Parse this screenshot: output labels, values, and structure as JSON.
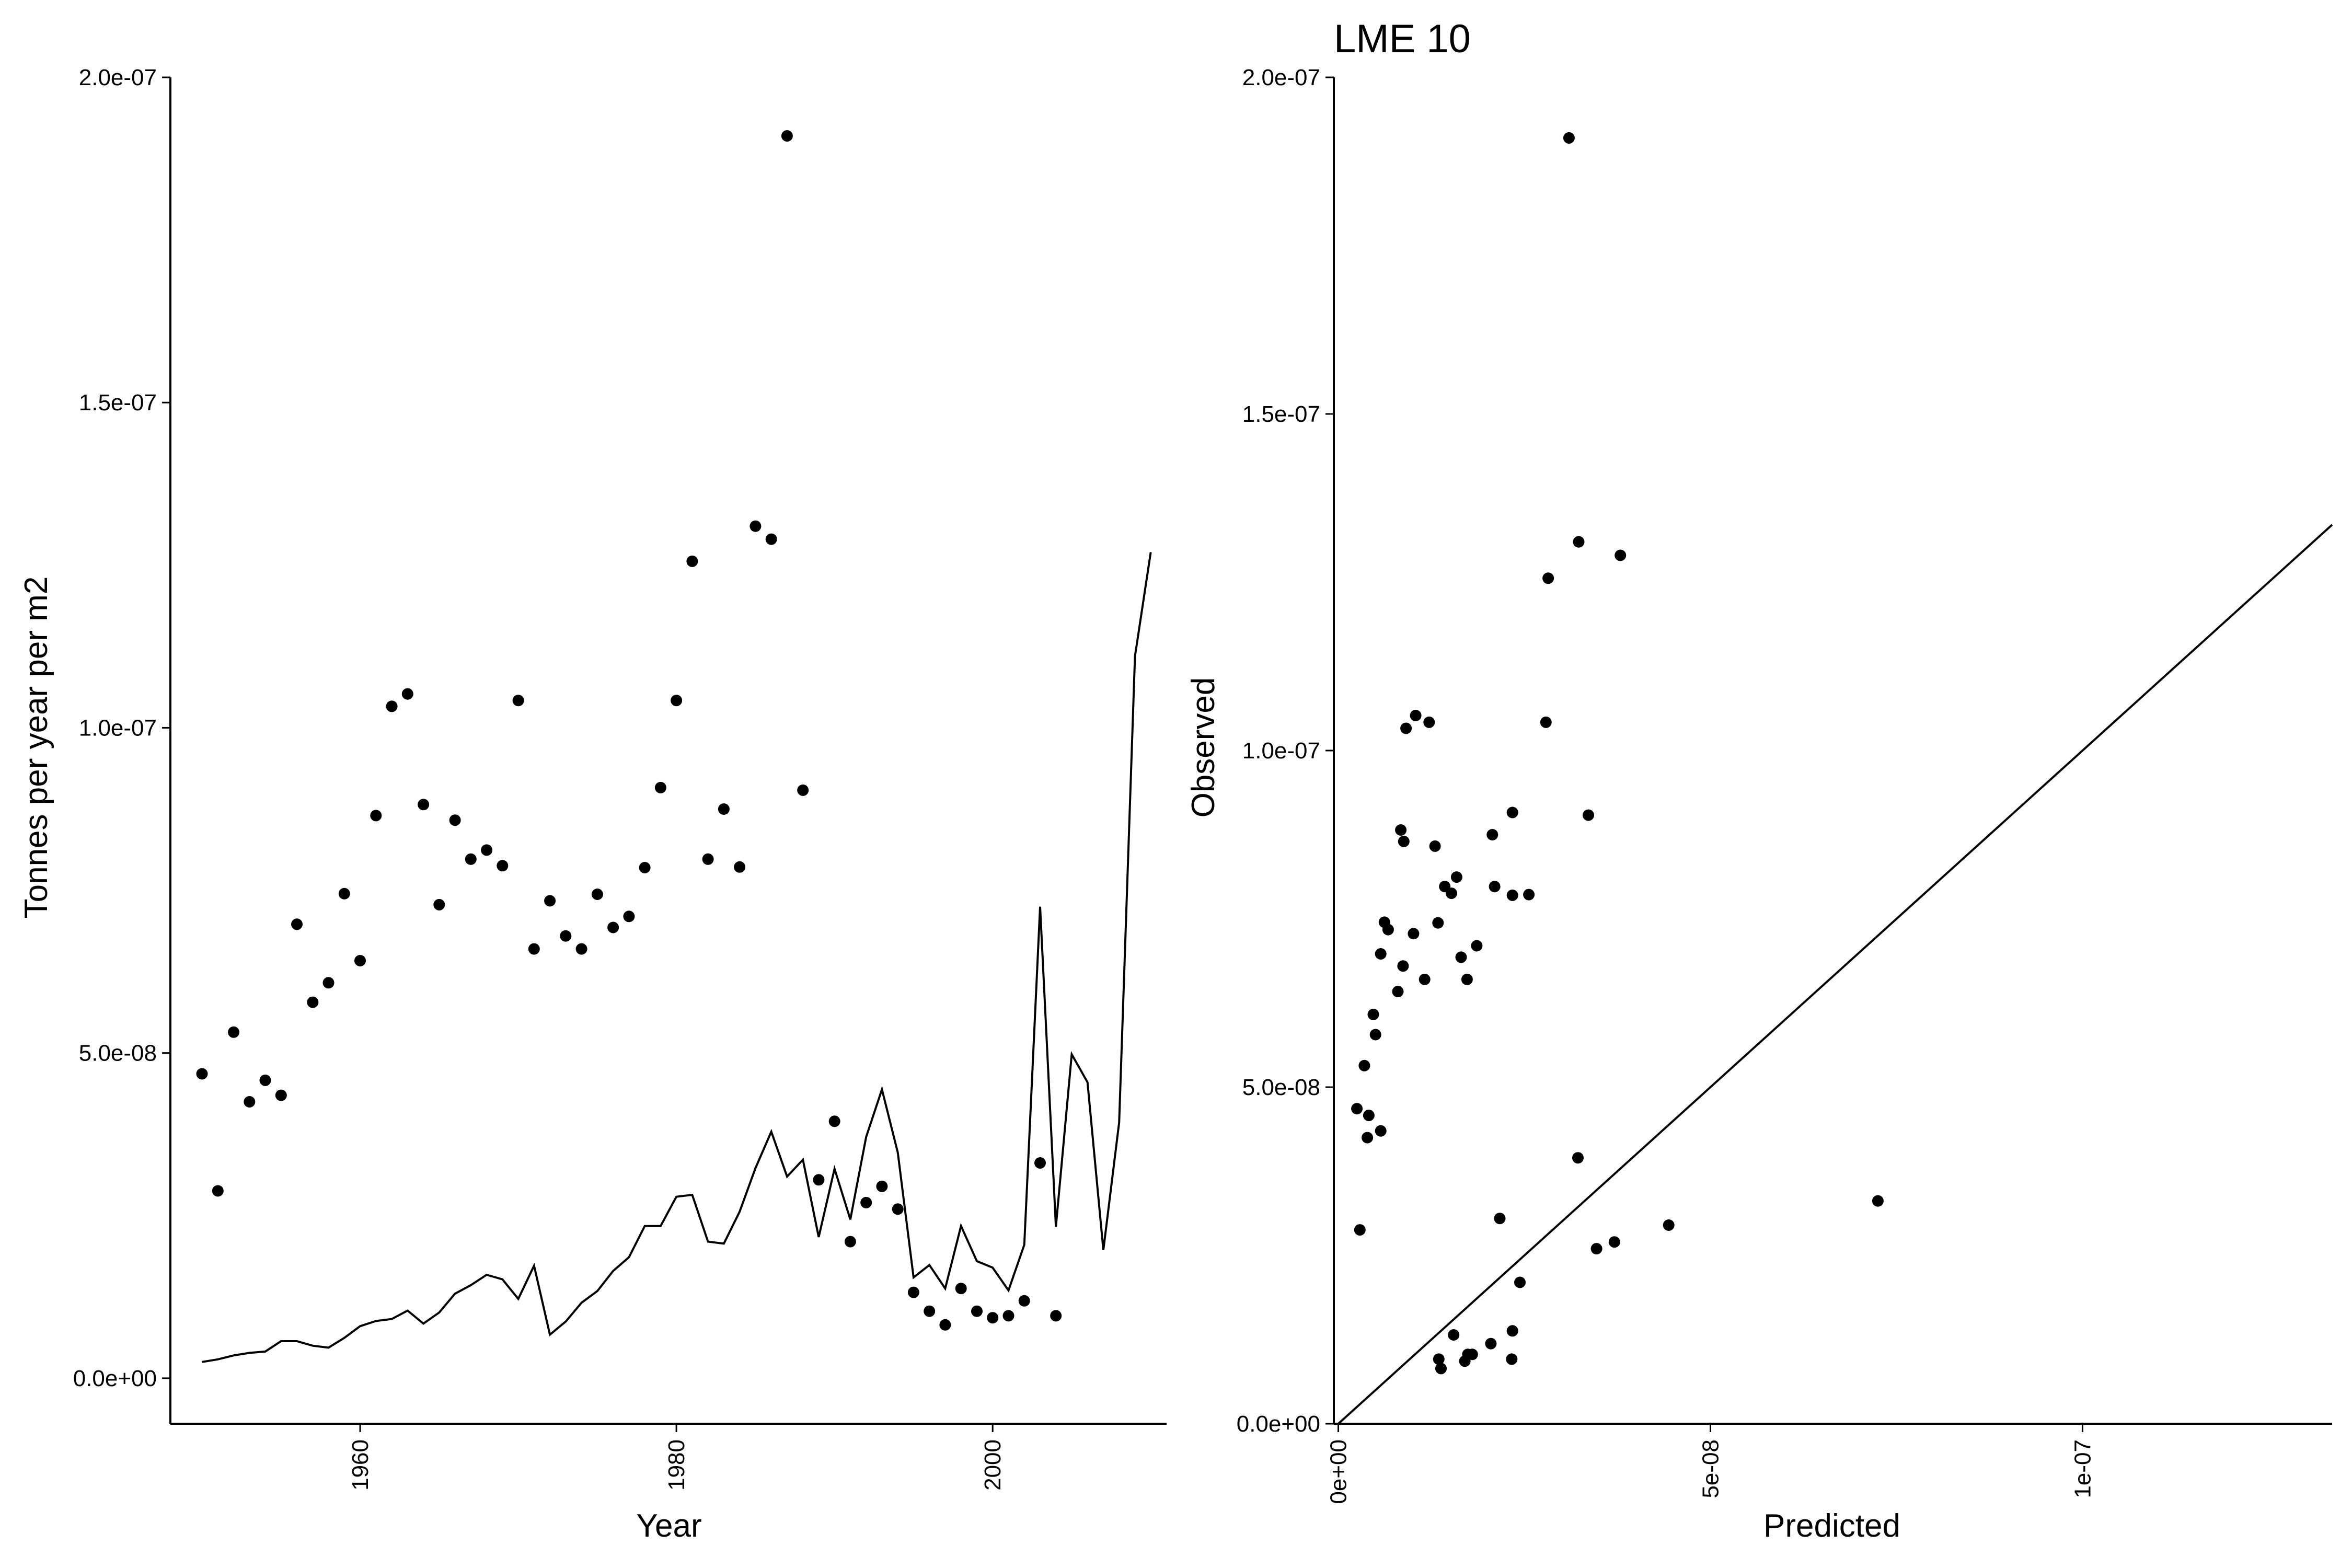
{
  "chart_data": [
    {
      "type": "line+scatter",
      "title": "",
      "xlabel": "Year",
      "ylabel": "Tonnes per year per m2",
      "xlim": [
        1948,
        2011
      ],
      "ylim": [
        -7e-09,
        2e-07
      ],
      "xticks": [
        {
          "v": 1960,
          "label": "1960"
        },
        {
          "v": 1980,
          "label": "1980"
        },
        {
          "v": 2000,
          "label": "2000"
        }
      ],
      "yticks": [
        {
          "v": 0,
          "label": "0.0e+00"
        },
        {
          "v": 5e-08,
          "label": "5.0e-08"
        },
        {
          "v": 1e-07,
          "label": "1.0e-07"
        },
        {
          "v": 1.5e-07,
          "label": "1.5e-07"
        },
        {
          "v": 2e-07,
          "label": "2.0e-07"
        }
      ],
      "grid": false,
      "points": {
        "x": [
          1950,
          1951,
          1952,
          1953,
          1954,
          1955,
          1956,
          1957,
          1958,
          1959,
          1960,
          1961,
          1962,
          1963,
          1964,
          1965,
          1966,
          1967,
          1968,
          1969,
          1970,
          1971,
          1972,
          1973,
          1974,
          1975,
          1976,
          1977,
          1978,
          1979,
          1980,
          1981,
          1982,
          1983,
          1984,
          1985,
          1986,
          1987,
          1988,
          1989,
          1990,
          1991,
          1992,
          1993,
          1994,
          1995,
          1996,
          1997,
          1998,
          1999,
          2000,
          2001,
          2002,
          2003,
          2004
        ],
        "y": [
          4.68e-08,
          2.88e-08,
          5.32e-08,
          4.25e-08,
          4.58e-08,
          4.35e-08,
          6.98e-08,
          5.78e-08,
          6.08e-08,
          7.45e-08,
          6.42e-08,
          8.65e-08,
          1.033e-07,
          1.052e-07,
          8.82e-08,
          7.28e-08,
          8.58e-08,
          7.98e-08,
          8.12e-08,
          7.88e-08,
          1.042e-07,
          6.6e-08,
          7.34e-08,
          6.8e-08,
          6.6e-08,
          7.44e-08,
          6.93e-08,
          7.1e-08,
          7.85e-08,
          9.08e-08,
          1.042e-07,
          1.256e-07,
          7.98e-08,
          8.75e-08,
          7.86e-08,
          1.31e-07,
          1.29e-07,
          1.91e-07,
          9.04e-08,
          3.05e-08,
          3.95e-08,
          2.1e-08,
          2.7e-08,
          2.95e-08,
          2.6e-08,
          1.32e-08,
          1.03e-08,
          8.2e-09,
          1.38e-08,
          1.03e-08,
          9.3e-09,
          9.6e-09,
          1.19e-08,
          3.31e-08,
          9.6e-09
        ]
      },
      "line": {
        "x": [
          1950,
          1951,
          1952,
          1953,
          1954,
          1955,
          1956,
          1957,
          1958,
          1959,
          1960,
          1961,
          1962,
          1963,
          1964,
          1965,
          1966,
          1967,
          1968,
          1969,
          1970,
          1971,
          1972,
          1973,
          1974,
          1975,
          1976,
          1977,
          1978,
          1979,
          1980,
          1981,
          1982,
          1983,
          1984,
          1985,
          1986,
          1987,
          1988,
          1989,
          1990,
          1991,
          1992,
          1993,
          1994,
          1995,
          1996,
          1997,
          1998,
          1999,
          2000,
          2001,
          2002,
          2003,
          2004,
          2005,
          2006,
          2007,
          2008,
          2009,
          2010
        ],
        "y": [
          2.5e-09,
          2.9e-09,
          3.5e-09,
          3.9e-09,
          4.1e-09,
          5.7e-09,
          5.7e-09,
          5e-09,
          4.7e-09,
          6.2e-09,
          8e-09,
          8.8e-09,
          9.1e-09,
          1.04e-08,
          8.4e-09,
          1.01e-08,
          1.3e-08,
          1.43e-08,
          1.59e-08,
          1.52e-08,
          1.22e-08,
          1.73e-08,
          6.7e-09,
          8.7e-09,
          1.16e-08,
          1.34e-08,
          1.65e-08,
          1.86e-08,
          2.34e-08,
          2.34e-08,
          2.79e-08,
          2.82e-08,
          2.1e-08,
          2.07e-08,
          2.56e-08,
          3.23e-08,
          3.79e-08,
          3.1e-08,
          3.36e-08,
          2.17e-08,
          3.22e-08,
          2.44e-08,
          3.71e-08,
          4.44e-08,
          3.47e-08,
          1.55e-08,
          1.74e-08,
          1.38e-08,
          2.34e-08,
          1.8e-08,
          1.7e-08,
          1.35e-08,
          2.05e-08,
          7.25e-08,
          2.33e-08,
          4.98e-08,
          4.55e-08,
          1.97e-08,
          3.93e-08,
          1.11e-07,
          1.27e-07
        ]
      }
    },
    {
      "type": "scatter",
      "title": "LME 10",
      "xlabel": "Predicted",
      "ylabel": "Observed",
      "xlim": [
        -6e-10,
        1.3354e-07
      ],
      "ylim": [
        0,
        2e-07
      ],
      "xticks": [
        {
          "v": 0,
          "label": "0e+00"
        },
        {
          "v": 5e-08,
          "label": "5e-08"
        },
        {
          "v": 1e-07,
          "label": "1e-07"
        }
      ],
      "yticks": [
        {
          "v": 0,
          "label": "0.0e+00"
        },
        {
          "v": 5e-08,
          "label": "5.0e-08"
        },
        {
          "v": 1e-07,
          "label": "1.0e-07"
        },
        {
          "v": 1.5e-07,
          "label": "1.5e-07"
        },
        {
          "v": 2e-07,
          "label": "2.0e-07"
        }
      ],
      "grid": false,
      "reference_line": "y = x",
      "points": {
        "x": [
          2.5e-09,
          2.9e-09,
          3.5e-09,
          3.9e-09,
          4.1e-09,
          5.7e-09,
          5.7e-09,
          5e-09,
          4.7e-09,
          6.2e-09,
          8e-09,
          8.8e-09,
          9.1e-09,
          1.04e-08,
          8.4e-09,
          1.01e-08,
          1.3e-08,
          1.43e-08,
          1.59e-08,
          1.52e-08,
          1.22e-08,
          1.73e-08,
          6.7e-09,
          8.7e-09,
          1.16e-08,
          1.34e-08,
          1.65e-08,
          1.86e-08,
          2.34e-08,
          2.34e-08,
          2.79e-08,
          2.82e-08,
          2.1e-08,
          2.07e-08,
          2.56e-08,
          3.23e-08,
          3.79e-08,
          3.1e-08,
          3.36e-08,
          2.17e-08,
          3.22e-08,
          2.44e-08,
          3.71e-08,
          4.44e-08,
          3.47e-08,
          1.55e-08,
          1.74e-08,
          1.38e-08,
          2.34e-08,
          1.8e-08,
          1.7e-08,
          1.35e-08,
          2.05e-08,
          7.25e-08,
          2.33e-08
        ],
        "y": [
          4.68e-08,
          2.88e-08,
          5.32e-08,
          4.25e-08,
          4.58e-08,
          4.35e-08,
          6.98e-08,
          5.78e-08,
          6.08e-08,
          7.45e-08,
          6.42e-08,
          8.65e-08,
          1.033e-07,
          1.052e-07,
          8.82e-08,
          7.28e-08,
          8.58e-08,
          7.98e-08,
          8.12e-08,
          7.88e-08,
          1.042e-07,
          6.6e-08,
          7.34e-08,
          6.8e-08,
          6.6e-08,
          7.44e-08,
          6.93e-08,
          7.1e-08,
          7.85e-08,
          9.08e-08,
          1.042e-07,
          1.256e-07,
          7.98e-08,
          8.75e-08,
          7.86e-08,
          1.31e-07,
          1.29e-07,
          1.91e-07,
          9.04e-08,
          3.05e-08,
          3.95e-08,
          2.1e-08,
          2.7e-08,
          2.95e-08,
          2.6e-08,
          1.32e-08,
          1.03e-08,
          8.2e-09,
          1.38e-08,
          1.03e-08,
          9.3e-09,
          9.6e-09,
          1.19e-08,
          3.31e-08,
          9.6e-09
        ]
      }
    }
  ]
}
